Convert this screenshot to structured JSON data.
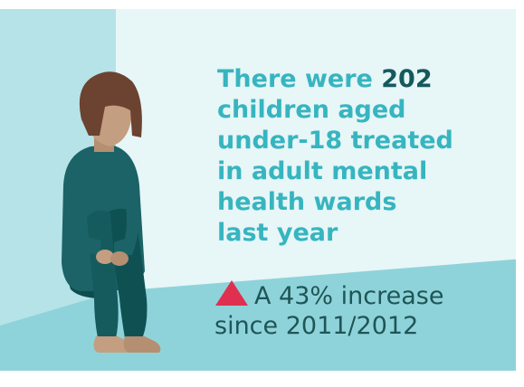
{
  "headline": {
    "prefix": "There were ",
    "number": "202",
    "rest": " children aged under-18 treated in adult mental health wards last year"
  },
  "subline": {
    "icon": "up-triangle-icon",
    "line1": "A 43% increase",
    "line2": "since 2011/2012"
  },
  "colors": {
    "accent_text": "#36b5c0",
    "number_text": "#145a5c",
    "body_text": "#1e5557",
    "triangle": "#e0304f",
    "wall": "#e7f6f7",
    "wall_shadow": "#b6e3e8",
    "floor": "#8fd3da"
  }
}
